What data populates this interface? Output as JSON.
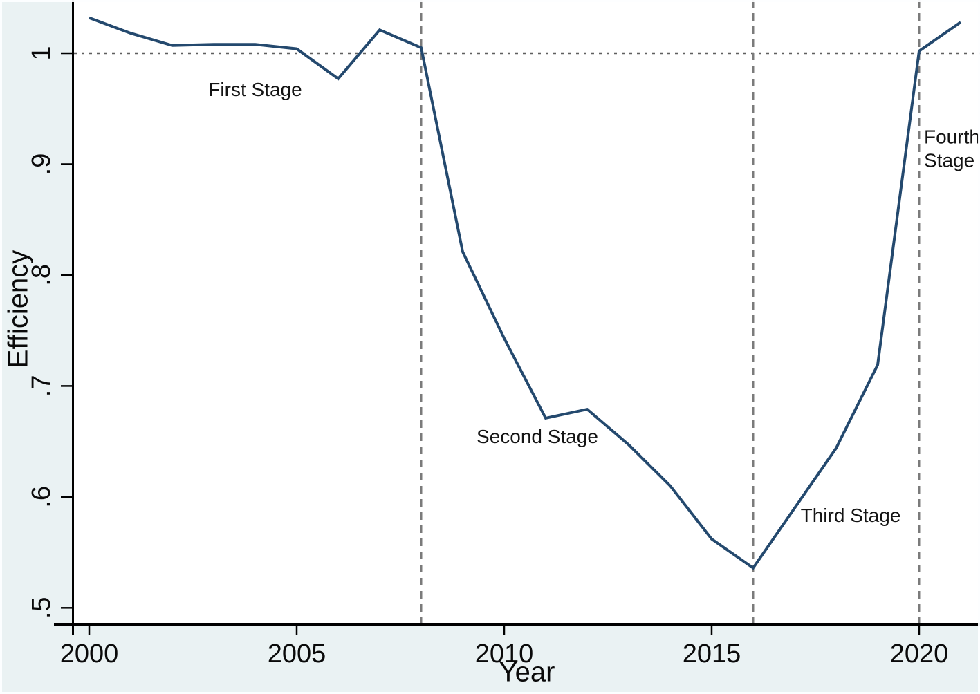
{
  "figure": {
    "background_color": "#eaf2f3",
    "plot_background_color": "#ffffff",
    "frame_color": "#fdfeff"
  },
  "chart_data": {
    "type": "line",
    "title": "",
    "xlabel": "Year",
    "ylabel": "Efficiency",
    "grid": false,
    "legend": "none",
    "xlim": [
      1999.633,
      2021.467
    ],
    "ylim": [
      0.484,
      1.048
    ],
    "x_ticks": {
      "values": [
        2000,
        2005,
        2010,
        2015,
        2020
      ],
      "labels": [
        "2000",
        "2005",
        "2010",
        "2015",
        "2020"
      ]
    },
    "y_ticks": {
      "values": [
        0.5,
        0.6,
        0.7,
        0.8,
        0.9,
        1.0
      ],
      "labels": [
        ".5",
        ".6",
        ".7",
        ".8",
        ".9",
        "1"
      ]
    },
    "series": [
      {
        "name": "Efficiency",
        "color": "#24496e",
        "x": [
          2000,
          2001,
          2002,
          2003,
          2004,
          2005,
          2006,
          2007,
          2008,
          2009,
          2010,
          2011,
          2012,
          2013,
          2014,
          2015,
          2016,
          2017,
          2018,
          2019,
          2020,
          2021
        ],
        "y": [
          1.032,
          1.018,
          1.007,
          1.008,
          1.008,
          1.004,
          0.977,
          1.021,
          1.005,
          0.821,
          0.743,
          0.671,
          0.679,
          0.647,
          0.61,
          0.562,
          0.536,
          0.59,
          0.644,
          0.719,
          1.002,
          1.028
        ]
      }
    ],
    "reference_lines": [
      {
        "orientation": "horizontal",
        "value": 1.0,
        "style": "dotted",
        "color": "#5f5f5f"
      },
      {
        "orientation": "vertical",
        "value": 2008,
        "style": "dashed",
        "color": "#7b7b7b"
      },
      {
        "orientation": "vertical",
        "value": 2016,
        "style": "dashed",
        "color": "#7b7b7b"
      },
      {
        "orientation": "vertical",
        "value": 2020,
        "style": "dashed",
        "color": "#7b7b7b"
      }
    ],
    "annotations": [
      {
        "text": "First Stage",
        "x": 2004.0,
        "y": 0.967,
        "align": "center"
      },
      {
        "text": "Second Stage",
        "x": 2010.8,
        "y": 0.654,
        "align": "center"
      },
      {
        "text": "Third Stage",
        "x": 2018.35,
        "y": 0.583,
        "align": "center"
      },
      {
        "text": "Fourth\nStage",
        "x": 2020.12,
        "y": 0.914,
        "align": "left"
      }
    ],
    "axis_color": "#000000"
  }
}
